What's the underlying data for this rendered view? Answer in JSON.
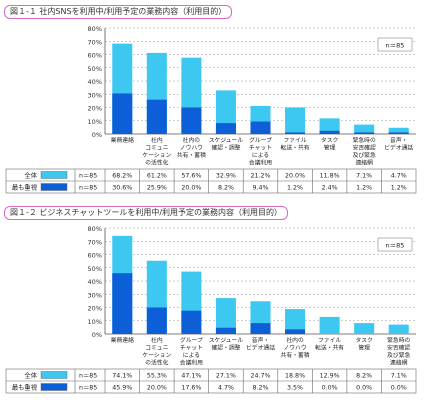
{
  "colors": {
    "all": "#3cc8f0",
    "most": "#0d5fd8",
    "border": "#6b6b6b",
    "grid": "#9a9a9a",
    "title_border": "#d66ac8"
  },
  "chart_data": [
    {
      "type": "bar",
      "title": "図１-１ 社内SNSを利用中/利用予定の業務内容（利用目的）",
      "n_label": "n＝85",
      "ylim": [
        0,
        80
      ],
      "yticks": [
        "0%",
        "10%",
        "20%",
        "30%",
        "40%",
        "50%",
        "60%",
        "70%",
        "80%"
      ],
      "categories": [
        [
          "業務連絡"
        ],
        [
          "社内",
          "コミュニ",
          "ケーション",
          "の活性化"
        ],
        [
          "社内の",
          "ノウハウ",
          "共有・蓄積"
        ],
        [
          "スケジュール",
          "確認・調整"
        ],
        [
          "グループ",
          "チャット",
          "による",
          "会議利用"
        ],
        [
          "ファイル",
          "転送・共有"
        ],
        [
          "タスク",
          "管理"
        ],
        [
          "緊急時の",
          "安否確認",
          "及び緊急",
          "連絡網"
        ],
        [
          "音声・",
          "ビデオ通話"
        ]
      ],
      "series": [
        {
          "name": "全体",
          "n": "n＝85",
          "values": [
            68.2,
            61.2,
            57.6,
            32.9,
            21.2,
            20.0,
            11.8,
            7.1,
            4.7
          ],
          "labels": [
            "68.2%",
            "61.2%",
            "57.6%",
            "32.9%",
            "21.2%",
            "20.0%",
            "11.8%",
            "7.1%",
            "4.7%"
          ]
        },
        {
          "name": "最も重視",
          "n": "n＝85",
          "values": [
            30.6,
            25.9,
            20.0,
            8.2,
            9.4,
            1.2,
            2.4,
            1.2,
            1.2
          ],
          "labels": [
            "30.6%",
            "25.9%",
            "20.0%",
            "8.2%",
            "9.4%",
            "1.2%",
            "2.4%",
            "1.2%",
            "1.2%"
          ]
        }
      ]
    },
    {
      "type": "bar",
      "title": "図１-２ ビジネスチャットツールを利用中/利用予定の業務内容（利用目的）",
      "n_label": "n＝85",
      "ylim": [
        0,
        80
      ],
      "yticks": [
        "0%",
        "10%",
        "20%",
        "30%",
        "40%",
        "50%",
        "60%",
        "70%",
        "80%"
      ],
      "categories": [
        [
          "業務連絡"
        ],
        [
          "社内",
          "コミュニ",
          "ケーション",
          "の活性化"
        ],
        [
          "グループ",
          "チャット",
          "による",
          "会議利用"
        ],
        [
          "スケジュール",
          "確認・調整"
        ],
        [
          "音声・",
          "ビデオ通話"
        ],
        [
          "社内の",
          "ノウハウ",
          "共有・蓄積"
        ],
        [
          "ファイル",
          "転送・共有"
        ],
        [
          "タスク",
          "管理"
        ],
        [
          "緊急時の",
          "安否確認",
          "及び緊急",
          "連絡網"
        ]
      ],
      "series": [
        {
          "name": "全体",
          "n": "n＝85",
          "values": [
            74.1,
            55.3,
            47.1,
            27.1,
            24.7,
            18.8,
            12.9,
            8.2,
            7.1
          ],
          "labels": [
            "74.1%",
            "55.3%",
            "47.1%",
            "27.1%",
            "24.7%",
            "18.8%",
            "12.9%",
            "8.2%",
            "7.1%"
          ]
        },
        {
          "name": "最も重視",
          "n": "n＝85",
          "values": [
            45.9,
            20.0,
            17.6,
            4.7,
            8.2,
            3.5,
            0.0,
            0.0,
            0.0
          ],
          "labels": [
            "45.9%",
            "20.0%",
            "17.6%",
            "4.7%",
            "8.2%",
            "3.5%",
            "0.0%",
            "0.0%",
            "0.0%"
          ]
        }
      ]
    }
  ]
}
